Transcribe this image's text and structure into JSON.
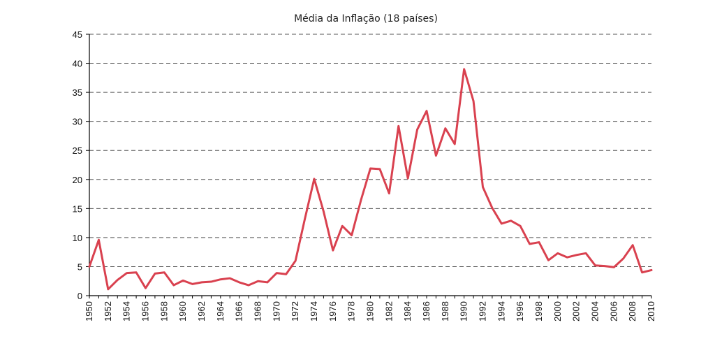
{
  "chart_data": {
    "type": "line",
    "title": "Média da Inflação (18 países)",
    "xlabel": "",
    "ylabel": "",
    "xlim": [
      1950,
      2010
    ],
    "ylim": [
      0,
      45
    ],
    "yticks": [
      0,
      5,
      10,
      15,
      20,
      25,
      30,
      35,
      40,
      45
    ],
    "xticks": [
      1950,
      1952,
      1954,
      1956,
      1958,
      1960,
      1962,
      1964,
      1966,
      1968,
      1970,
      1972,
      1974,
      1976,
      1978,
      1980,
      1982,
      1984,
      1986,
      1988,
      1990,
      1992,
      1994,
      1996,
      1998,
      2000,
      2002,
      2004,
      2006,
      2008,
      2010
    ],
    "grid": "horizontal-dashed",
    "line_color": "#d9414f",
    "series": [
      {
        "name": "Média da Inflação",
        "x": [
          1950,
          1951,
          1952,
          1953,
          1954,
          1955,
          1956,
          1957,
          1958,
          1959,
          1960,
          1961,
          1962,
          1963,
          1964,
          1965,
          1966,
          1967,
          1968,
          1969,
          1970,
          1971,
          1972,
          1973,
          1974,
          1975,
          1976,
          1977,
          1978,
          1979,
          1980,
          1981,
          1982,
          1983,
          1984,
          1985,
          1986,
          1987,
          1988,
          1989,
          1990,
          1991,
          1992,
          1993,
          1994,
          1995,
          1996,
          1997,
          1998,
          1999,
          2000,
          2001,
          2002,
          2003,
          2004,
          2005,
          2006,
          2007,
          2008,
          2009,
          2010
        ],
        "values": [
          5.0,
          9.6,
          1.1,
          2.7,
          3.9,
          4.0,
          1.3,
          3.8,
          4.0,
          1.8,
          2.6,
          2.0,
          2.3,
          2.4,
          2.8,
          3.0,
          2.3,
          1.8,
          2.5,
          2.3,
          3.9,
          3.7,
          6.0,
          13.2,
          20.1,
          14.5,
          7.8,
          12.0,
          10.4,
          16.5,
          21.9,
          21.8,
          17.6,
          29.2,
          20.2,
          28.6,
          31.8,
          24.1,
          28.8,
          26.1,
          39.0,
          33.5,
          18.7,
          15.1,
          12.4,
          12.9,
          12.0,
          8.9,
          9.2,
          6.1,
          7.3,
          6.6,
          7.0,
          7.3,
          5.2,
          5.1,
          4.9,
          6.4,
          8.7,
          4.0,
          4.4
        ]
      }
    ]
  }
}
